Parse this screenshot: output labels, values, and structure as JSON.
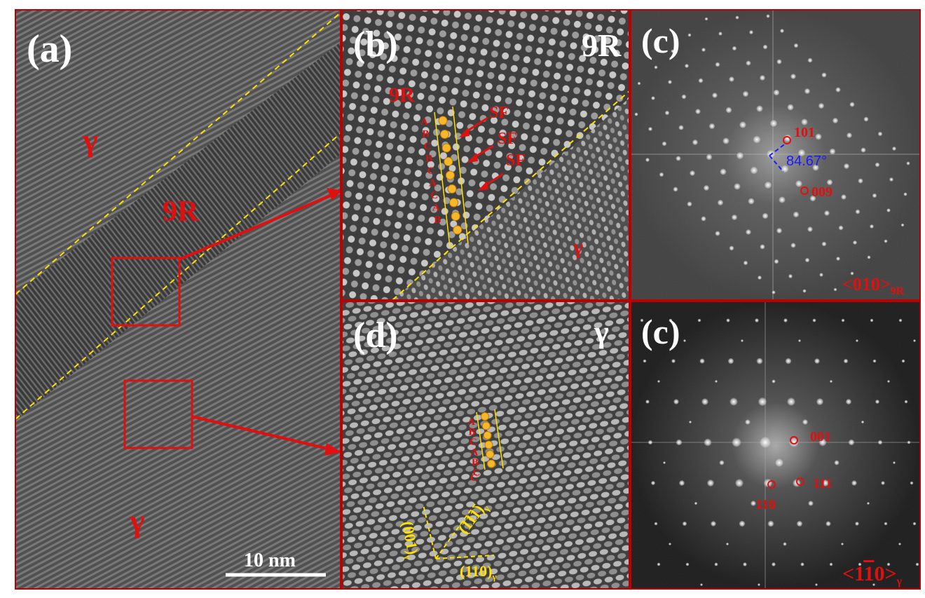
{
  "figure": {
    "panels": {
      "a": {
        "tag": "(a)",
        "phase_top": "γ",
        "phase_mid": "9R",
        "phase_bottom": "γ",
        "scale_bar": "10 nm"
      },
      "b": {
        "tag": "(b)",
        "corner_label": "9R",
        "region_label": "9R",
        "gamma_label": "γ",
        "sf_labels": [
          "SF",
          "SF",
          "SF"
        ],
        "stacking": [
          "A",
          "B",
          "C",
          "B",
          "C",
          "A",
          "C",
          "A",
          "B"
        ]
      },
      "c_top": {
        "tag": "(c)",
        "spots": [
          "101",
          "009"
        ],
        "angle": "84.67°",
        "zone_main": "<010>",
        "zone_sub": "9R"
      },
      "d": {
        "tag": "(d)",
        "corner_label": "γ",
        "stacking": [
          "A",
          "B",
          "C",
          "A",
          "B",
          "C"
        ],
        "planes": [
          "(001)",
          "(111)",
          "(110)"
        ],
        "plane_sub": "γ"
      },
      "c_bottom": {
        "tag": "(c)",
        "spots": [
          "001",
          "111",
          "110"
        ],
        "zone_main": "<1",
        "zone_bar": "1",
        "zone_end": "0>",
        "zone_sub": "γ"
      }
    },
    "colors": {
      "label_red": "#e01010",
      "frame_red": "#c00000",
      "guide_yellow": "#ffe000",
      "angle_blue": "#1a1aff",
      "white": "#ffffff"
    }
  }
}
